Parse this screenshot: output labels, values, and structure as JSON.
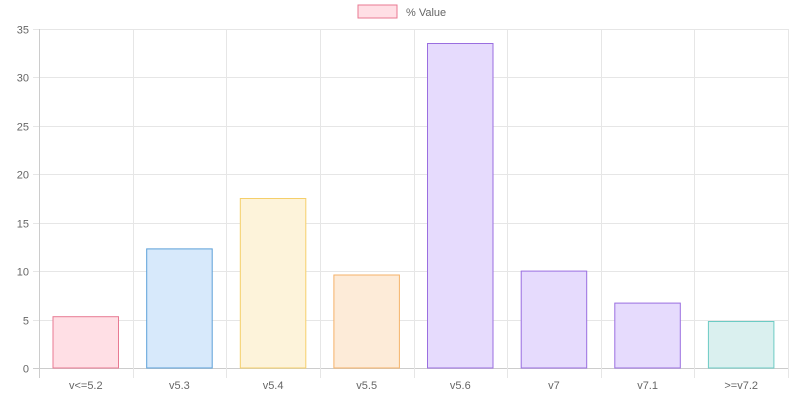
{
  "chart_data": {
    "type": "bar",
    "categories": [
      "v<=5.2",
      "v5.3",
      "v5.4",
      "v5.5",
      "v5.6",
      "v7",
      "v7.1",
      ">=v7.2"
    ],
    "series": [
      {
        "name": "% Value",
        "values": [
          5.3,
          12.3,
          17.5,
          9.6,
          33.5,
          10.0,
          6.7,
          4.8
        ]
      }
    ],
    "ylim": [
      0,
      35
    ],
    "yticks": [
      0,
      5,
      10,
      15,
      20,
      25,
      30,
      35
    ],
    "grid": true,
    "legend": "top-center",
    "bar_colors": [
      {
        "fill": "#ffdfe5",
        "stroke": "#e87a92"
      },
      {
        "fill": "#d7e9fb",
        "stroke": "#5a9fd8"
      },
      {
        "fill": "#fdf3da",
        "stroke": "#f5cf6a"
      },
      {
        "fill": "#fdebd8",
        "stroke": "#f5b269"
      },
      {
        "fill": "#e6dbfd",
        "stroke": "#9a6ee0"
      },
      {
        "fill": "#e6dbfd",
        "stroke": "#9a6ee0"
      },
      {
        "fill": "#e6dbfd",
        "stroke": "#9a6ee0"
      },
      {
        "fill": "#daf0ef",
        "stroke": "#6ccbc4"
      }
    ],
    "legend_colors": {
      "fill": "#ffdfe5",
      "stroke": "#e87a92"
    }
  }
}
